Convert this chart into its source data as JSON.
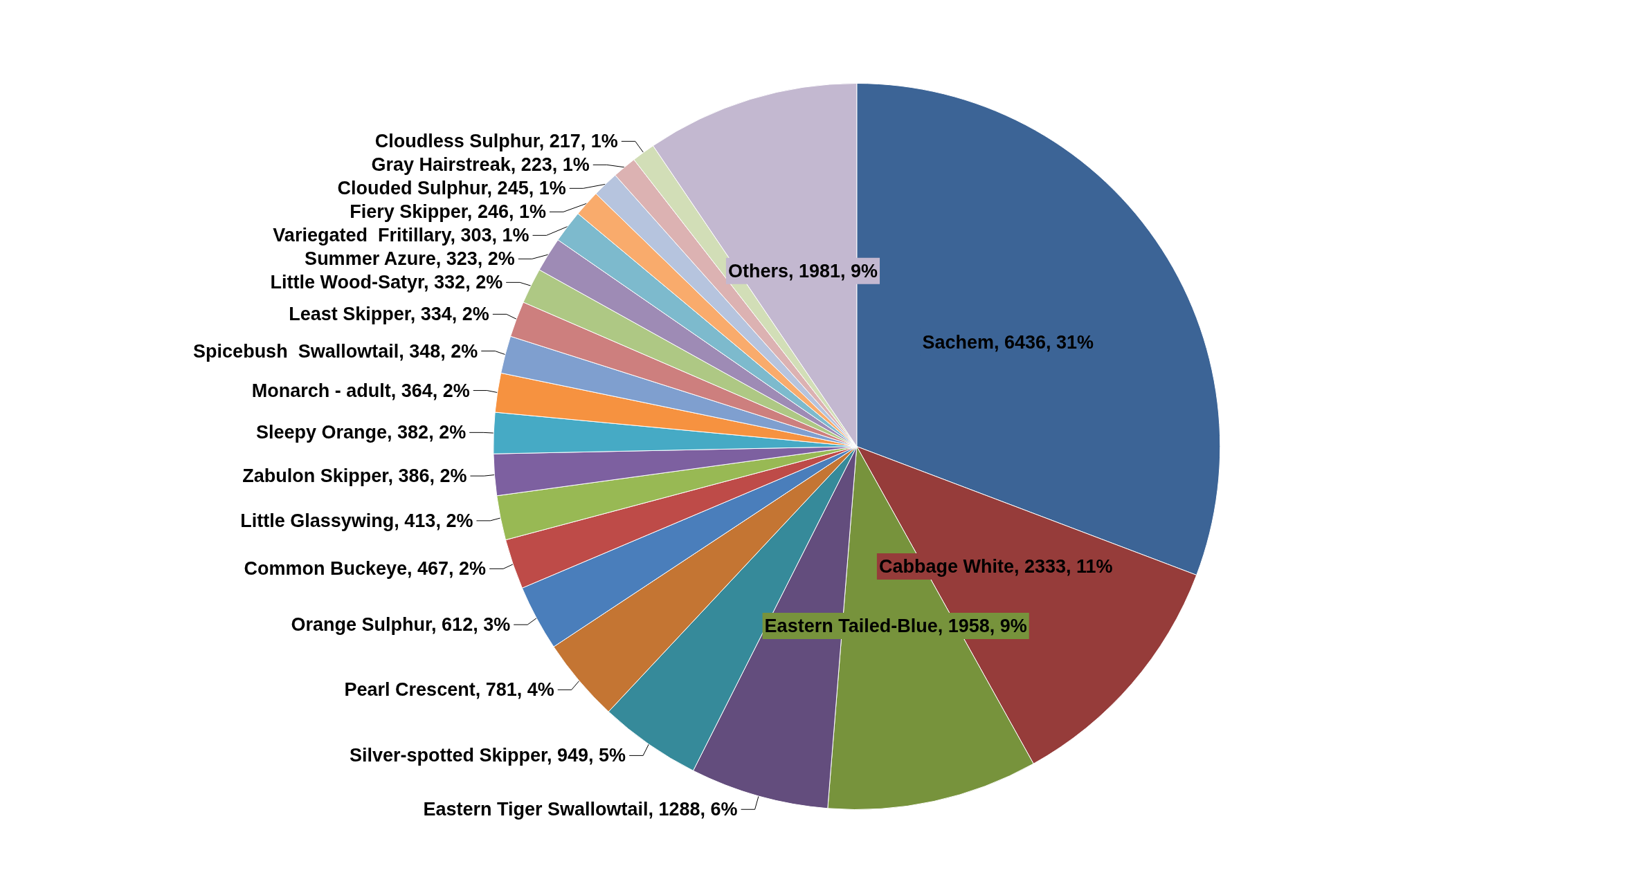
{
  "chart_data": {
    "type": "pie",
    "categories": [
      "Sachem",
      "Cabbage White",
      "Eastern Tailed-Blue",
      "Eastern Tiger Swallowtail",
      "Silver-spotted Skipper",
      "Pearl Crescent",
      "Orange Sulphur",
      "Common Buckeye",
      "Little Glassywing",
      "Zabulon Skipper",
      "Sleepy Orange",
      "Monarch - adult",
      "Spicebush  Swallowtail",
      "Least Skipper",
      "Little Wood-Satyr",
      "Summer Azure",
      "Variegated  Fritillary",
      "Fiery Skipper",
      "Clouded Sulphur",
      "Gray Hairstreak",
      "Cloudless Sulphur",
      "Others"
    ],
    "values": [
      6436,
      2333,
      1958,
      1288,
      949,
      781,
      612,
      467,
      413,
      386,
      382,
      364,
      348,
      334,
      332,
      323,
      303,
      246,
      245,
      223,
      217,
      1981
    ],
    "value_labels": [
      "6436, 31%",
      "2333, 11%",
      "1958, 9%",
      "1288, 6%",
      "949, 5%",
      "781, 4%",
      "612, 3%",
      "467, 2%",
      "413, 2%",
      "386, 2%",
      "382, 2%",
      "364, 2%",
      "348, 2%",
      "334, 2%",
      "332, 2%",
      "323, 2%",
      "303, 1%",
      "246, 1%",
      "245, 1%",
      "223, 1%",
      "217, 1%",
      "1981, 9%"
    ],
    "colors": [
      "#3c6496",
      "#963c3a",
      "#77933c",
      "#634d7d",
      "#368a9a",
      "#c47533",
      "#4a7ebb",
      "#be4b48",
      "#98b954",
      "#7d60a0",
      "#46aac5",
      "#f69240",
      "#7f9fcf",
      "#cd7f7e",
      "#aec884",
      "#9e8bb5",
      "#7dbacd",
      "#f9ab6c",
      "#b6c4de",
      "#dcb2b2",
      "#d2deb7",
      "#c3b8d0"
    ],
    "legend": false
  }
}
